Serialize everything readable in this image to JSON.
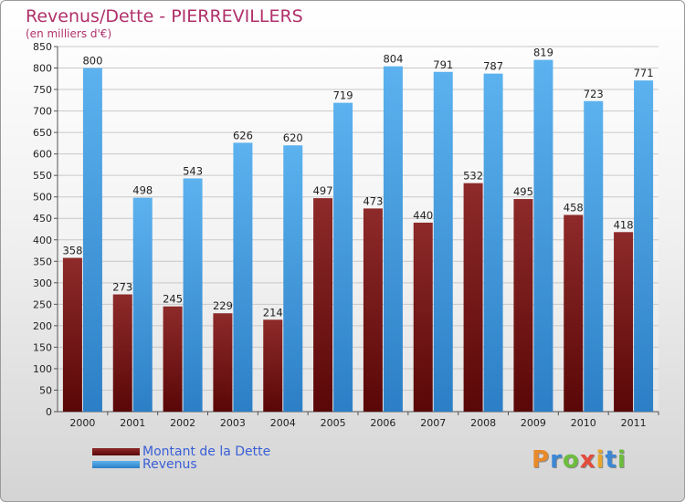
{
  "chart_data": {
    "type": "bar",
    "title": "Revenus/Dette - PIERREVILLERS",
    "subtitle": "(en milliers d'€)",
    "categories": [
      "2000",
      "2001",
      "2002",
      "2003",
      "2004",
      "2005",
      "2006",
      "2007",
      "2008",
      "2009",
      "2010",
      "2011"
    ],
    "series": [
      {
        "name": "Montant de la Dette",
        "color": "#7a1616",
        "values": [
          358,
          273,
          245,
          229,
          214,
          497,
          473,
          440,
          532,
          495,
          458,
          418
        ]
      },
      {
        "name": "Revenus",
        "color": "#3d9ce4",
        "values": [
          800,
          498,
          543,
          626,
          620,
          719,
          804,
          791,
          787,
          819,
          723,
          771
        ]
      }
    ],
    "ylim": [
      0,
      850
    ],
    "ytick_step": 50,
    "grid": true,
    "legend_position": "bottom-left"
  },
  "logo": {
    "letters": [
      "P",
      "r",
      "o",
      "x",
      "i",
      "t",
      "i"
    ],
    "colors": [
      "#e8892a",
      "#3b87d4",
      "#6cbd3d",
      "#e34b3b",
      "#e8a72a",
      "#3b87d4",
      "#6cbd3d"
    ]
  }
}
